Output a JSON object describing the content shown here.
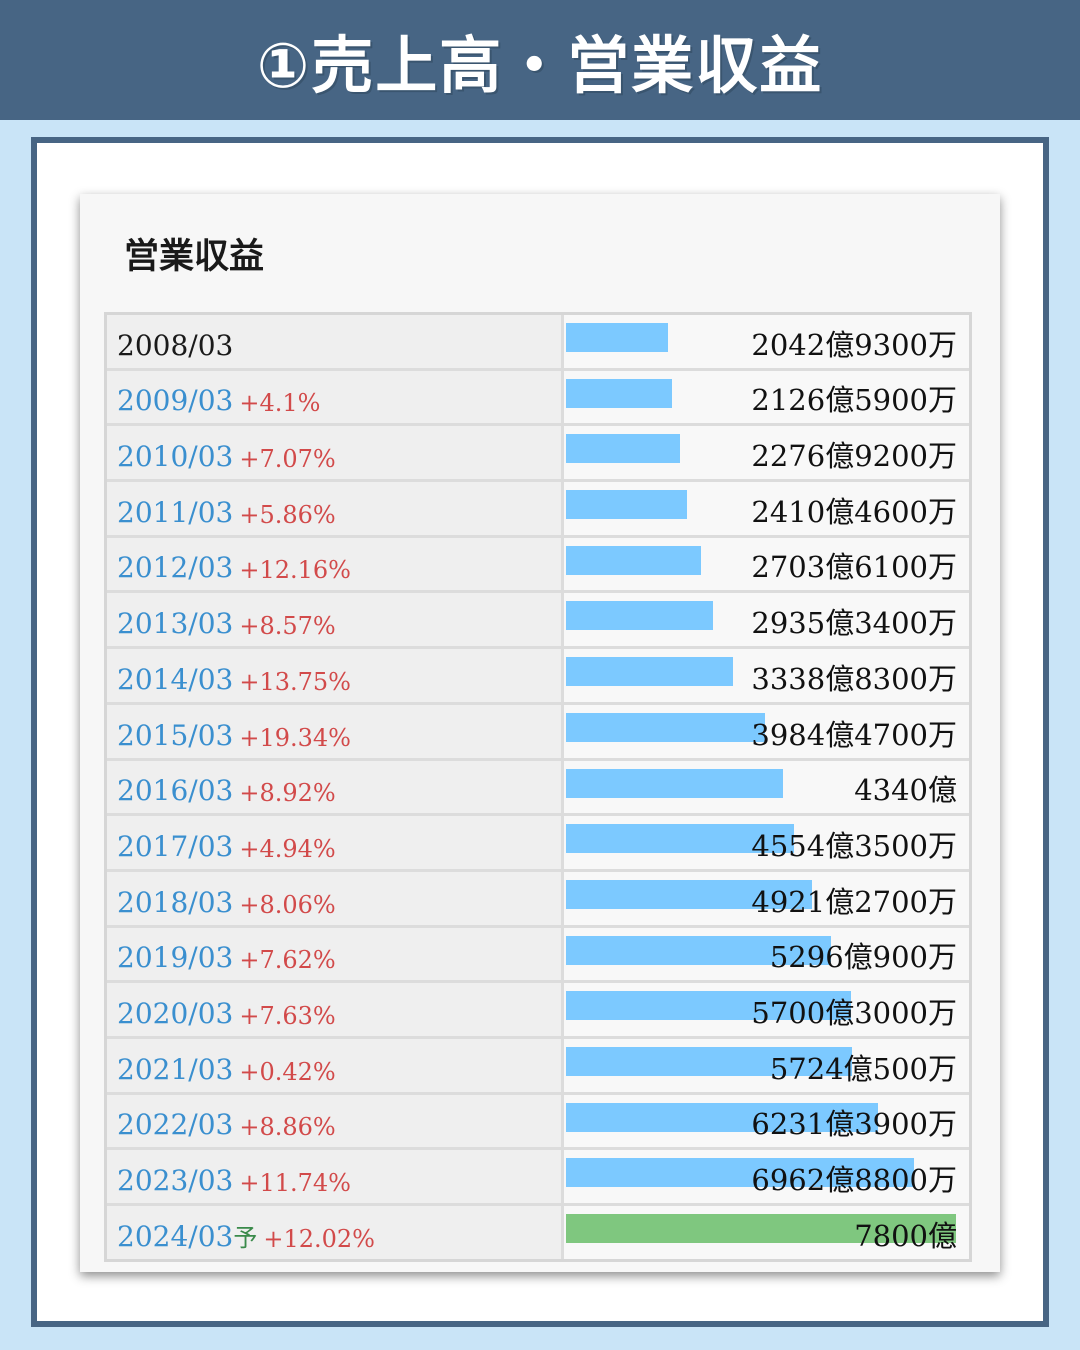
{
  "header": {
    "title": "①売上高・営業収益"
  },
  "card": {
    "title": "営業収益"
  },
  "colors": {
    "bar": "#7cc9ff",
    "forecast_bar": "#7fc77f",
    "year_link": "#3a8fcf",
    "growth": "#d24a4a"
  },
  "chart_data": {
    "type": "bar",
    "orientation": "horizontal",
    "title": "営業収益",
    "unit": "億円",
    "xlim": [
      0,
      7800
    ],
    "rows": [
      {
        "period": "2008/03",
        "growth": "",
        "mark": "",
        "label": "2042億9300万",
        "value": 2042.93
      },
      {
        "period": "2009/03",
        "growth": "+4.1%",
        "mark": "",
        "label": "2126億5900万",
        "value": 2126.59
      },
      {
        "period": "2010/03",
        "growth": "+7.07%",
        "mark": "",
        "label": "2276億9200万",
        "value": 2276.92
      },
      {
        "period": "2011/03",
        "growth": "+5.86%",
        "mark": "",
        "label": "2410億4600万",
        "value": 2410.46
      },
      {
        "period": "2012/03",
        "growth": "+12.16%",
        "mark": "",
        "label": "2703億6100万",
        "value": 2703.61
      },
      {
        "period": "2013/03",
        "growth": "+8.57%",
        "mark": "",
        "label": "2935億3400万",
        "value": 2935.34
      },
      {
        "period": "2014/03",
        "growth": "+13.75%",
        "mark": "",
        "label": "3338億8300万",
        "value": 3338.83
      },
      {
        "period": "2015/03",
        "growth": "+19.34%",
        "mark": "",
        "label": "3984億4700万",
        "value": 3984.47
      },
      {
        "period": "2016/03",
        "growth": "+8.92%",
        "mark": "",
        "label": "4340億",
        "value": 4340.0
      },
      {
        "period": "2017/03",
        "growth": "+4.94%",
        "mark": "",
        "label": "4554億3500万",
        "value": 4554.35
      },
      {
        "period": "2018/03",
        "growth": "+8.06%",
        "mark": "",
        "label": "4921億2700万",
        "value": 4921.27
      },
      {
        "period": "2019/03",
        "growth": "+7.62%",
        "mark": "",
        "label": "5296億900万",
        "value": 5296.09
      },
      {
        "period": "2020/03",
        "growth": "+7.63%",
        "mark": "",
        "label": "5700億3000万",
        "value": 5700.3
      },
      {
        "period": "2021/03",
        "growth": "+0.42%",
        "mark": "",
        "label": "5724億500万",
        "value": 5724.05
      },
      {
        "period": "2022/03",
        "growth": "+8.86%",
        "mark": "",
        "label": "6231億3900万",
        "value": 6231.39
      },
      {
        "period": "2023/03",
        "growth": "+11.74%",
        "mark": "",
        "label": "6962億8800万",
        "value": 6962.88
      },
      {
        "period": "2024/03",
        "growth": "+12.02%",
        "mark": "予",
        "label": "7800億",
        "value": 7800.0,
        "forecast": true
      }
    ]
  }
}
